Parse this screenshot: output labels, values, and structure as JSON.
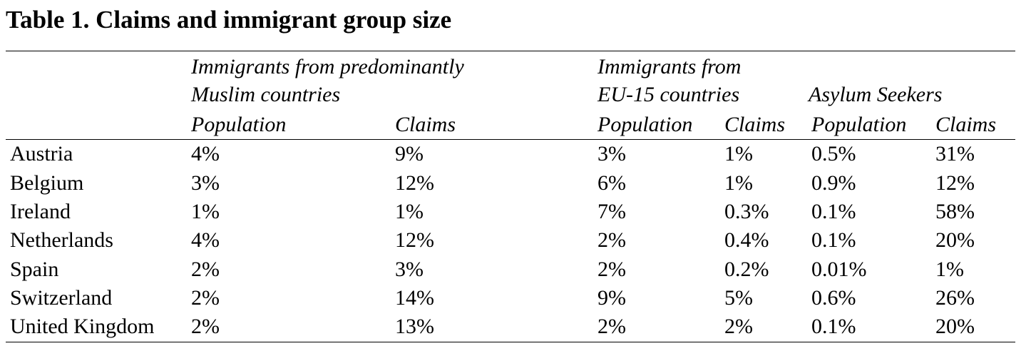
{
  "title": "Table 1. Claims and immigrant group size",
  "header": {
    "group_muslim_line1": "Immigrants from predominantly",
    "group_muslim_line2": "Muslim countries",
    "group_eu_line1": "Immigrants from",
    "group_eu_line2": "EU-15 countries",
    "group_asylum": "Asylum Seekers",
    "col_population": "Population",
    "col_claims": "Claims"
  },
  "rows": [
    {
      "country": "Austria",
      "muslim_pop": "4%",
      "muslim_claims": "9%",
      "eu_pop": "3%",
      "eu_claims": "1%",
      "asylum_pop": "0.5%",
      "asylum_claims": "31%"
    },
    {
      "country": "Belgium",
      "muslim_pop": "3%",
      "muslim_claims": "12%",
      "eu_pop": "6%",
      "eu_claims": "1%",
      "asylum_pop": "0.9%",
      "asylum_claims": "12%"
    },
    {
      "country": "Ireland",
      "muslim_pop": "1%",
      "muslim_claims": "1%",
      "eu_pop": "7%",
      "eu_claims": "0.3%",
      "asylum_pop": "0.1%",
      "asylum_claims": "58%"
    },
    {
      "country": "Netherlands",
      "muslim_pop": "4%",
      "muslim_claims": "12%",
      "eu_pop": "2%",
      "eu_claims": "0.4%",
      "asylum_pop": "0.1%",
      "asylum_claims": "20%"
    },
    {
      "country": "Spain",
      "muslim_pop": "2%",
      "muslim_claims": "3%",
      "eu_pop": "2%",
      "eu_claims": "0.2%",
      "asylum_pop": "0.01%",
      "asylum_claims": "1%"
    },
    {
      "country": "Switzerland",
      "muslim_pop": "2%",
      "muslim_claims": "14%",
      "eu_pop": "9%",
      "eu_claims": "5%",
      "asylum_pop": "0.6%",
      "asylum_claims": "26%"
    },
    {
      "country": "United Kingdom",
      "muslim_pop": "2%",
      "muslim_claims": "13%",
      "eu_pop": "2%",
      "eu_claims": "2%",
      "asylum_pop": "0.1%",
      "asylum_claims": "20%"
    }
  ]
}
